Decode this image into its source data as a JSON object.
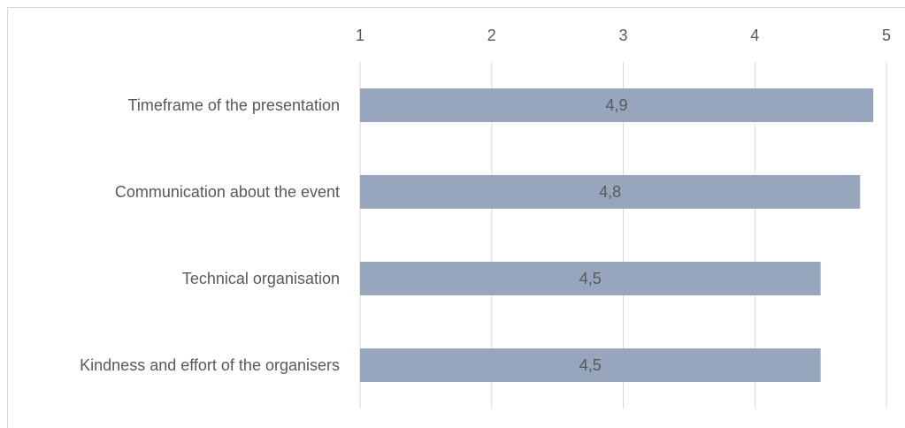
{
  "chart_data": {
    "type": "bar",
    "orientation": "horizontal",
    "categories": [
      "Timeframe of the presentation",
      "Communication about the event",
      "Technical organisation",
      "Kindness and effort of the organisers"
    ],
    "values": [
      4.9,
      4.8,
      4.5,
      4.5
    ],
    "value_labels": [
      "4,9",
      "4,8",
      "4,5",
      "4,5"
    ],
    "color": "#97a6bc",
    "xlim": [
      1,
      5
    ],
    "xticks": [
      1,
      2,
      3,
      4,
      5
    ],
    "grid": true
  }
}
